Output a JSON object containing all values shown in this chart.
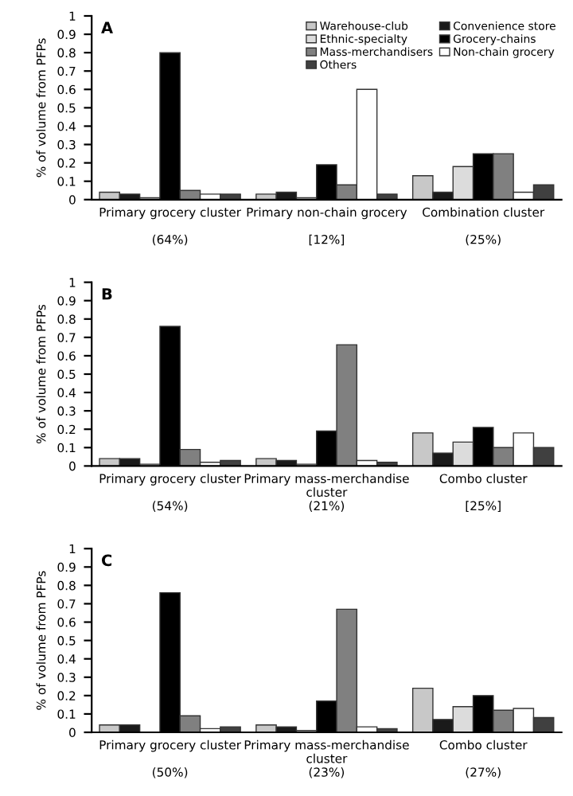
{
  "chart_data": [
    {
      "type": "bar",
      "annotations": [
        "A"
      ],
      "ylabel": "% of volume from PFPs",
      "categories": [
        "Primary grocery cluster\n\n(64%)",
        "Primary non-chain grocery\n\n[12%]",
        "Combination cluster\n\n(25%)"
      ],
      "ylim": [
        0,
        1
      ],
      "yticks": [
        0,
        0.1,
        0.2,
        0.3,
        0.4,
        0.5,
        0.6,
        0.7,
        0.8,
        0.9,
        1
      ],
      "legend": "top right",
      "series": [
        {
          "name": "Warehouse-club",
          "color": "#c8c8c8",
          "values": [
            0.04,
            0.03,
            0.13
          ]
        },
        {
          "name": "Convenience store",
          "color": "#1a1a1a",
          "values": [
            0.03,
            0.04,
            0.04
          ]
        },
        {
          "name": "Ethnic-specialty",
          "color": "#dcdcdc",
          "values": [
            0.01,
            0.01,
            0.18
          ]
        },
        {
          "name": "Grocery-chains",
          "color": "#000000",
          "values": [
            0.8,
            0.19,
            0.25
          ]
        },
        {
          "name": "Mass-merchandisers",
          "color": "#808080",
          "values": [
            0.05,
            0.08,
            0.25
          ]
        },
        {
          "name": "Non-chain grocery",
          "color": "#ffffff",
          "values": [
            0.03,
            0.6,
            0.04
          ]
        },
        {
          "name": "Others",
          "color": "#404040",
          "values": [
            0.03,
            0.03,
            0.08
          ]
        }
      ]
    },
    {
      "type": "bar",
      "annotations": [
        "B"
      ],
      "ylabel": "% of volume from PFPs",
      "categories": [
        "Primary grocery cluster\n\n(54%)",
        "Primary mass-merchandise\ncluster\n(21%)",
        "Combo cluster\n\n[25%]"
      ],
      "ylim": [
        0,
        1
      ],
      "yticks": [
        0,
        0.1,
        0.2,
        0.3,
        0.4,
        0.5,
        0.6,
        0.7,
        0.8,
        0.9,
        1
      ],
      "series": [
        {
          "color": "#c8c8c8",
          "values": [
            0.04,
            0.04,
            0.18
          ]
        },
        {
          "color": "#1a1a1a",
          "values": [
            0.04,
            0.03,
            0.07
          ]
        },
        {
          "color": "#dcdcdc",
          "values": [
            0.01,
            0.01,
            0.13
          ]
        },
        {
          "color": "#000000",
          "values": [
            0.76,
            0.19,
            0.21
          ]
        },
        {
          "color": "#808080",
          "values": [
            0.09,
            0.66,
            0.1
          ]
        },
        {
          "color": "#ffffff",
          "values": [
            0.02,
            0.03,
            0.18
          ]
        },
        {
          "color": "#404040",
          "values": [
            0.03,
            0.02,
            0.1
          ]
        }
      ]
    },
    {
      "type": "bar",
      "annotations": [
        "C"
      ],
      "ylabel": "% of volume from PFPs",
      "categories": [
        "Primary grocery cluster\n\n(50%)",
        "Primary mass-merchandise\ncluster\n(23%)",
        "Combo cluster\n\n(27%)"
      ],
      "ylim": [
        0,
        1
      ],
      "yticks": [
        0,
        0.1,
        0.2,
        0.3,
        0.4,
        0.5,
        0.6,
        0.7,
        0.8,
        0.9,
        1
      ],
      "series": [
        {
          "color": "#c8c8c8",
          "values": [
            0.04,
            0.04,
            0.24
          ]
        },
        {
          "color": "#1a1a1a",
          "values": [
            0.04,
            0.03,
            0.07
          ]
        },
        {
          "color": "#dcdcdc",
          "values": [
            null,
            0.01,
            0.14
          ]
        },
        {
          "color": "#000000",
          "values": [
            0.76,
            0.17,
            0.2
          ]
        },
        {
          "color": "#808080",
          "values": [
            0.09,
            0.67,
            0.12
          ]
        },
        {
          "color": "#ffffff",
          "values": [
            0.02,
            0.03,
            0.13
          ]
        },
        {
          "color": "#404040",
          "values": [
            0.03,
            0.02,
            0.08
          ]
        }
      ]
    }
  ]
}
